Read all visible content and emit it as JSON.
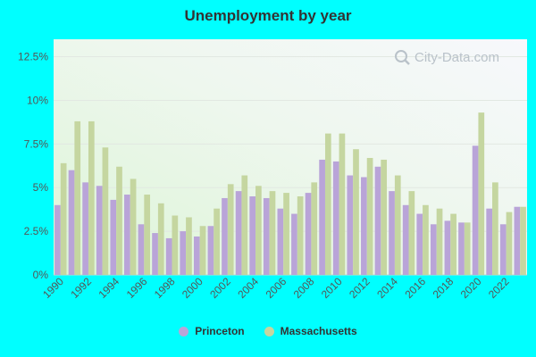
{
  "chart_data": {
    "type": "bar",
    "title": "Unemployment by year",
    "x": [
      1990,
      1991,
      1992,
      1993,
      1994,
      1995,
      1996,
      1997,
      1998,
      1999,
      2000,
      2001,
      2002,
      2003,
      2004,
      2005,
      2006,
      2007,
      2008,
      2009,
      2010,
      2011,
      2012,
      2013,
      2014,
      2015,
      2016,
      2017,
      2018,
      2019,
      2020,
      2021,
      2022,
      2023
    ],
    "x_tick_labels": [
      "1990",
      "1992",
      "1994",
      "1996",
      "1998",
      "2000",
      "2002",
      "2004",
      "2006",
      "2008",
      "2010",
      "2012",
      "2014",
      "2016",
      "2018",
      "2020",
      "2022"
    ],
    "y_tick_labels": [
      "0%",
      "2.5%",
      "5%",
      "7.5%",
      "10%",
      "12.5%"
    ],
    "y_ticks": [
      0,
      2.5,
      5,
      7.5,
      10,
      12.5
    ],
    "ylim": [
      0,
      13.5
    ],
    "grid": true,
    "legend_position": "bottom",
    "watermark": "City-Data.com",
    "series": [
      {
        "name": "Princeton",
        "color": "#b9a4d8",
        "values": [
          4.0,
          6.0,
          5.3,
          5.1,
          4.3,
          4.6,
          2.9,
          2.4,
          2.1,
          2.5,
          2.2,
          2.8,
          4.4,
          4.8,
          4.5,
          4.4,
          3.8,
          3.5,
          4.7,
          6.6,
          6.5,
          5.7,
          5.6,
          6.2,
          4.8,
          4.0,
          3.5,
          2.9,
          3.1,
          3.0,
          7.4,
          3.8,
          2.9,
          3.9
        ]
      },
      {
        "name": "Massachusetts",
        "color": "#c5d6a0",
        "values": [
          6.4,
          8.8,
          8.8,
          7.3,
          6.2,
          5.5,
          4.6,
          4.1,
          3.4,
          3.3,
          2.8,
          3.8,
          5.2,
          5.7,
          5.1,
          4.8,
          4.7,
          4.5,
          5.3,
          8.1,
          8.1,
          7.2,
          6.7,
          6.6,
          5.7,
          4.8,
          4.0,
          3.8,
          3.5,
          3.0,
          9.3,
          5.3,
          3.6,
          3.9
        ]
      }
    ]
  }
}
